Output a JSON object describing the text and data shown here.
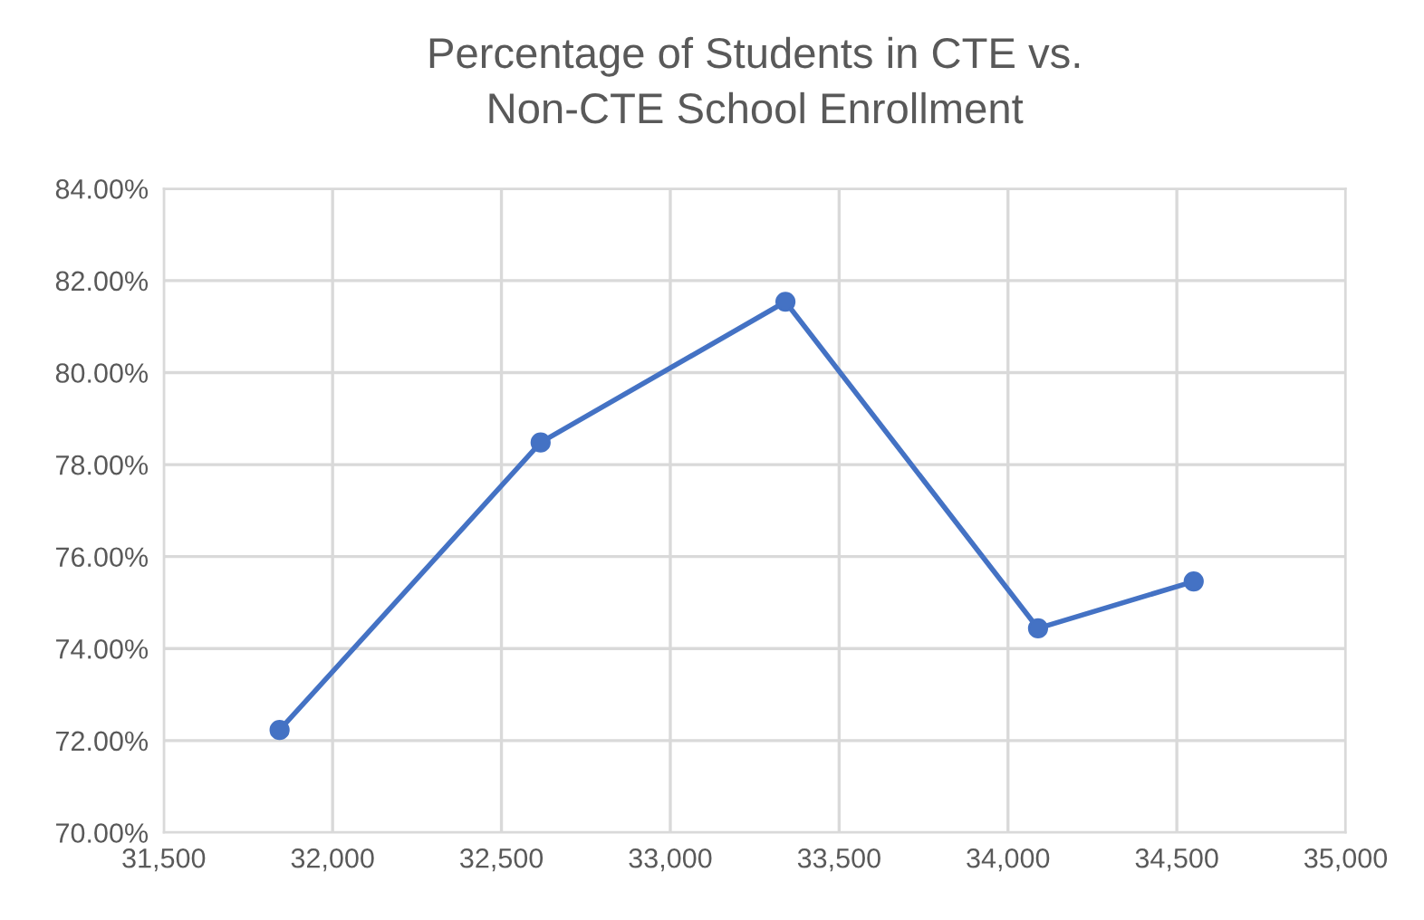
{
  "chart_data": {
    "type": "line",
    "title": "Percentage of Students in CTE vs.\nNon-CTE School Enrollment",
    "x": [
      31843,
      32616,
      33341,
      34089,
      34550
    ],
    "series": [
      {
        "color": "#4472c4",
        "values": [
          72.23,
          78.48,
          81.54,
          74.44,
          75.46
        ]
      }
    ],
    "xlim": [
      31500,
      35000
    ],
    "xticks": [
      {
        "value": 31500,
        "label": "31,500"
      },
      {
        "value": 32000,
        "label": "32,000"
      },
      {
        "value": 32500,
        "label": "32,500"
      },
      {
        "value": 33000,
        "label": "33,000"
      },
      {
        "value": 33500,
        "label": "33,500"
      },
      {
        "value": 34000,
        "label": "34,000"
      },
      {
        "value": 34500,
        "label": "34,500"
      },
      {
        "value": 35000,
        "label": "35,000"
      }
    ],
    "ylim": [
      70,
      84
    ],
    "yticks": [
      {
        "value": 70,
        "label": "70.00%"
      },
      {
        "value": 72,
        "label": "72.00%"
      },
      {
        "value": 74,
        "label": "74.00%"
      },
      {
        "value": 76,
        "label": "76.00%"
      },
      {
        "value": 78,
        "label": "78.00%"
      },
      {
        "value": 80,
        "label": "80.00%"
      },
      {
        "value": 82,
        "label": "82.00%"
      },
      {
        "value": 84,
        "label": "84.00%"
      }
    ],
    "grid": true,
    "marker": "circle",
    "line_style": "solid"
  }
}
